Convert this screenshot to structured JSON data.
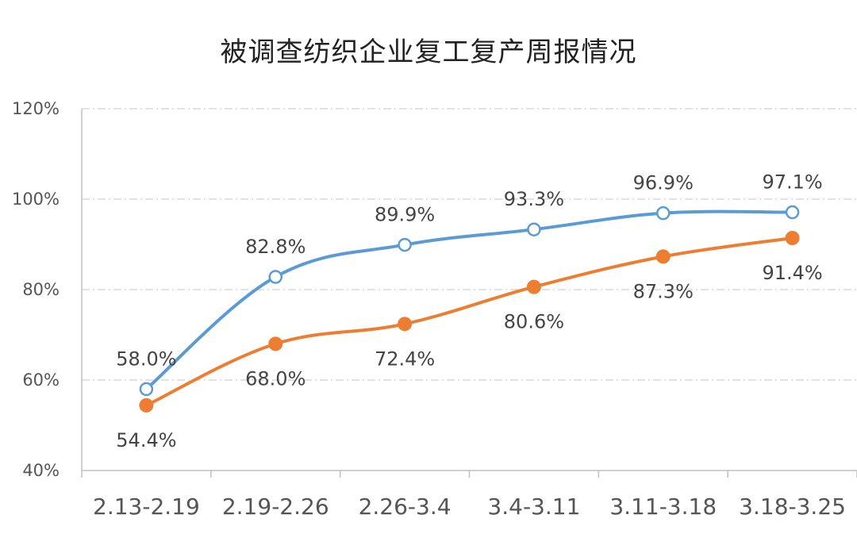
{
  "chart_data": {
    "type": "line",
    "title": "被调查纺织企业复工复产周报情况",
    "categories": [
      "2.13-2.19",
      "2.19-2.26",
      "2.26-3.4",
      "3.4-3.11",
      "3.11-3.18",
      "3.18-3.25"
    ],
    "series": [
      {
        "values": [
          58.0,
          82.8,
          89.9,
          93.3,
          96.9,
          97.1
        ],
        "labels": [
          "58.0%",
          "82.8%",
          "89.9%",
          "93.3%",
          "96.9%",
          "97.1%"
        ],
        "color": "#5b9bd5",
        "marker": "hollow-circle",
        "label_position": "above"
      },
      {
        "values": [
          54.4,
          68.0,
          72.4,
          80.6,
          87.3,
          91.4
        ],
        "labels": [
          "54.4%",
          "68.0%",
          "72.4%",
          "80.6%",
          "87.3%",
          "91.4%"
        ],
        "color": "#ed7d31",
        "marker": "filled-circle",
        "label_position": "below"
      }
    ],
    "ylim": [
      40,
      120
    ],
    "yticks": [
      "40%",
      "60%",
      "80%",
      "100%",
      "120%"
    ],
    "ytick_values": [
      40,
      60,
      80,
      100,
      120
    ],
    "grid": true,
    "legend": "none",
    "smooth": true
  }
}
